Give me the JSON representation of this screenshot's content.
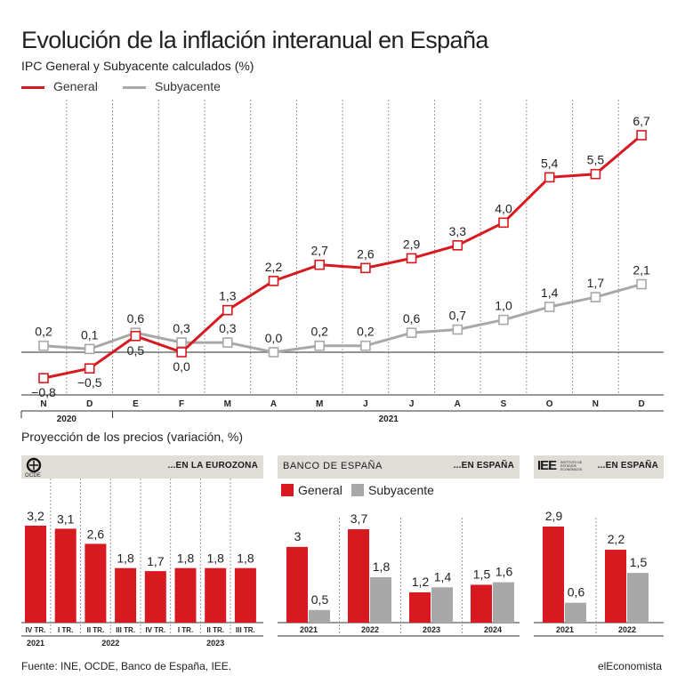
{
  "title": "Evolución de la inflación interanual en España",
  "subtitle": "IPC General y Subyacente calculados (%)",
  "colors": {
    "general": "#d71920",
    "subyacente": "#a8a8a8",
    "panel_head": "#e0ddd7"
  },
  "chart_data": [
    {
      "type": "line",
      "title": "Evolución de la inflación interanual en España",
      "subtitle": "IPC General y Subyacente calculados (%)",
      "categories": [
        "N",
        "D",
        "E",
        "F",
        "M",
        "A",
        "M",
        "J",
        "J",
        "A",
        "S",
        "O",
        "N",
        "D"
      ],
      "year_labels": [
        "2020",
        "2021"
      ],
      "series": [
        {
          "name": "General",
          "values": [
            -0.8,
            -0.5,
            0.5,
            0.0,
            1.3,
            2.2,
            2.7,
            2.6,
            2.9,
            3.3,
            4.0,
            5.4,
            5.5,
            6.7
          ],
          "labels": [
            "−0,8",
            "−0,5",
            "0,5",
            "0,0",
            "1,3",
            "2,2",
            "2,7",
            "2,6",
            "2,9",
            "3,3",
            "4,0",
            "5,4",
            "5,5",
            "6,7"
          ]
        },
        {
          "name": "Subyacente",
          "values": [
            0.2,
            0.1,
            0.6,
            0.3,
            0.3,
            0.0,
            0.2,
            0.2,
            0.6,
            0.7,
            1.0,
            1.4,
            1.7,
            2.1
          ],
          "labels": [
            "0,2",
            "0,1",
            "0,6",
            "0,3",
            "0,3",
            "0,0",
            "0,2",
            "0,2",
            "0,6",
            "0,7",
            "1,0",
            "1,4",
            "1,7",
            "2,1"
          ]
        }
      ],
      "ylim": [
        -1.0,
        7.5
      ],
      "legend_position": "top-left"
    },
    {
      "type": "bar",
      "section_title": "Proyección de los precios (variación, %)",
      "logo": "OCDE",
      "header": "...EN LA EUROZONA",
      "categories": [
        "IV TR.",
        "I TR.",
        "II TR.",
        "III TR.",
        "IV TR.",
        "I TR.",
        "II TR.",
        "III TR."
      ],
      "year_labels": [
        "2021",
        "2022",
        "2023"
      ],
      "values": [
        3.2,
        3.1,
        2.6,
        1.8,
        1.7,
        1.8,
        1.8,
        1.8
      ],
      "labels": [
        "3,2",
        "3,1",
        "2,6",
        "1,8",
        "1,7",
        "1,8",
        "1,8",
        "1,8"
      ],
      "ylim": [
        0,
        3.6
      ]
    },
    {
      "type": "bar",
      "logo": "BANCO DE ESPAÑA",
      "header": "...EN ESPAÑA",
      "categories": [
        "2021",
        "2022",
        "2023",
        "2024"
      ],
      "series": [
        {
          "name": "General",
          "values": [
            3,
            3.7,
            1.2,
            1.5
          ],
          "labels": [
            "3",
            "3,7",
            "1,2",
            "1,5"
          ]
        },
        {
          "name": "Subyacente",
          "values": [
            0.5,
            1.8,
            1.4,
            1.6
          ],
          "labels": [
            "0,5",
            "1,8",
            "1,4",
            "1,6"
          ]
        }
      ],
      "ylim": [
        0,
        4.2
      ]
    },
    {
      "type": "bar",
      "logo": "IEE",
      "logo_caption": "INSTITUTO DE ESTUDIOS ECONÓMICOS",
      "header": "...EN ESPAÑA",
      "categories": [
        "2021",
        "2022"
      ],
      "series": [
        {
          "name": "General",
          "values": [
            2.9,
            2.2
          ],
          "labels": [
            "2,9",
            "2,2"
          ]
        },
        {
          "name": "Subyacente",
          "values": [
            0.6,
            1.5
          ],
          "labels": [
            "0,6",
            "1,5"
          ]
        }
      ],
      "ylim": [
        0,
        3.6
      ]
    }
  ],
  "footer": {
    "source": "Fuente: INE, OCDE, Banco de España, IEE.",
    "brand": "elEconomista"
  }
}
